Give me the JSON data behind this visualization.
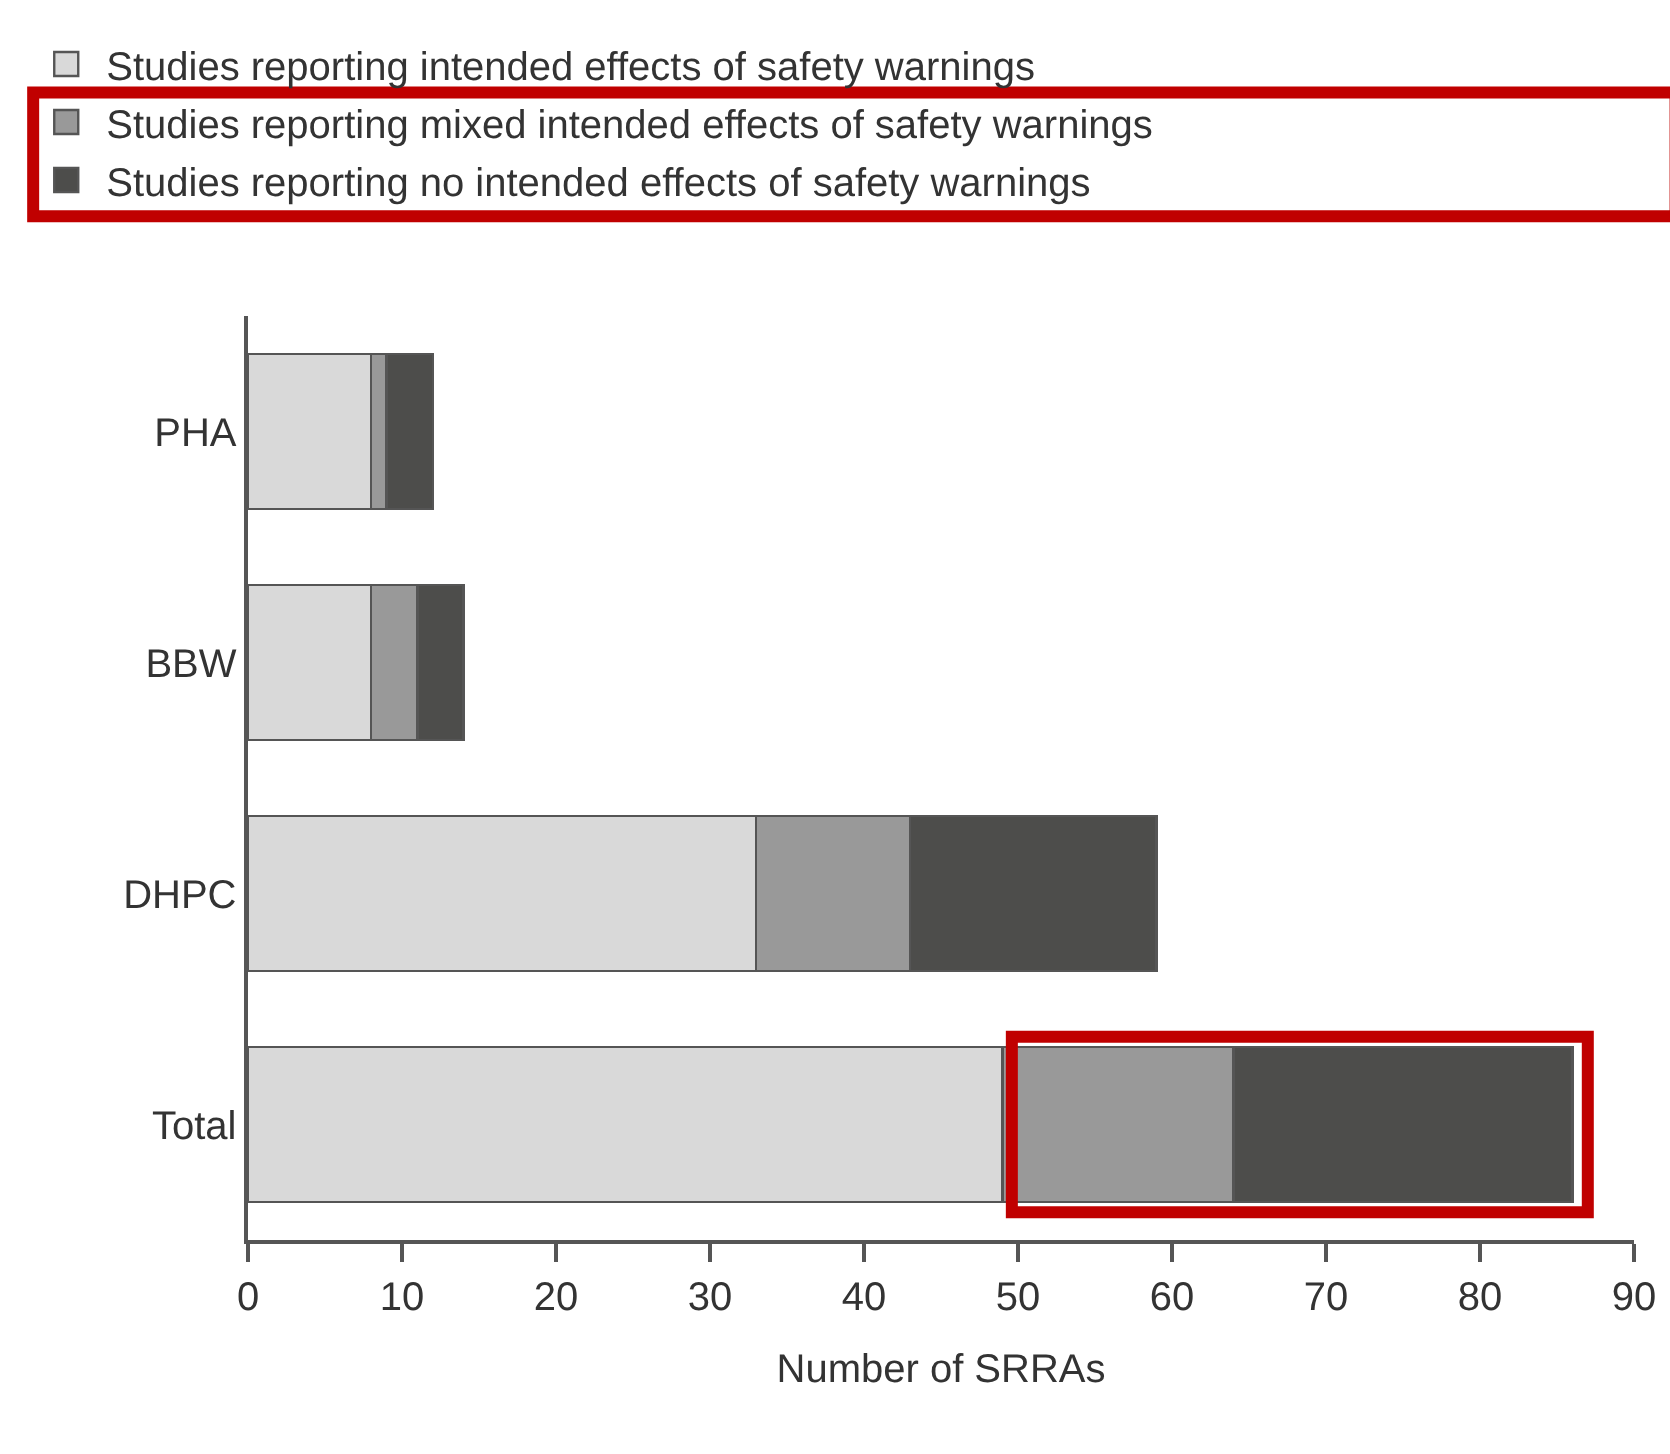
{
  "chart_data": {
    "type": "bar",
    "orientation": "horizontal",
    "stacked": true,
    "categories": [
      "PHA",
      "BBW",
      "DHPC",
      "Total"
    ],
    "series": [
      {
        "name": "Studies reporting intended effects of safety warnings",
        "color": "#d9d9d9",
        "values": [
          8,
          8,
          33,
          49
        ]
      },
      {
        "name": "Studies reporting mixed intended effects of safety warnings",
        "color": "#999999",
        "values": [
          1,
          3,
          10,
          15
        ]
      },
      {
        "name": "Studies reporting no intended effects of safety warnings",
        "color": "#4d4d4b",
        "values": [
          3,
          3,
          16,
          22
        ]
      }
    ],
    "xlabel": "Number of SRRAs",
    "xlim": [
      0,
      90
    ],
    "xticks": [
      0,
      10,
      20,
      30,
      40,
      50,
      60,
      70,
      80,
      90
    ],
    "grid": false,
    "legend": "top left"
  }
}
